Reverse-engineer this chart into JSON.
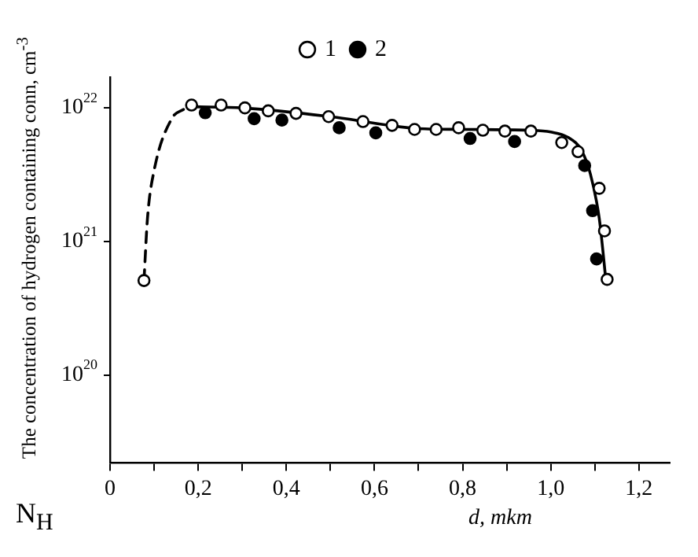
{
  "chart_data": {
    "type": "scatter",
    "ylabel": "The concentration of hydrogen containing conn, cm$^{-3}$",
    "xlabel": "d, mkm",
    "annotations": [
      "N$_{H}$"
    ],
    "xlim": [
      0,
      1.27
    ],
    "xticks": [
      0,
      {
        "value": 0.1,
        "label": null
      },
      {
        "value": 0.2,
        "label": "0,2"
      },
      {
        "value": 0.3,
        "label": null
      },
      {
        "value": 0.4,
        "label": "0,4"
      },
      {
        "value": 0.5,
        "label": null
      },
      {
        "value": 0.6,
        "label": "0,6"
      },
      {
        "value": 0.7,
        "label": null
      },
      {
        "value": 0.8,
        "label": "0,8"
      },
      {
        "value": 0.9,
        "label": null
      },
      {
        "value": 1.0,
        "label": "1,0"
      },
      {
        "value": 1.1,
        "label": null
      },
      {
        "value": 1.2,
        "label": "1,2"
      }
    ],
    "ylim": [
      2.2e+19,
      1.7e+22
    ],
    "yticks": [
      {
        "value": 1e+20,
        "label": "10$^{20}$"
      },
      {
        "value": 1e+21,
        "label": "10$^{21}$"
      },
      {
        "value": 1e+22,
        "label": "10$^{22}$"
      }
    ],
    "log": "y",
    "grid": false,
    "legend": "top",
    "series": [
      {
        "name": "1",
        "marker": "circle",
        "color": "#ffffff",
        "x": [
          0.077,
          0.185,
          0.252,
          0.306,
          0.359,
          0.422,
          0.496,
          0.574,
          0.64,
          0.691,
          0.74,
          0.791,
          0.846,
          0.896,
          0.955,
          1.025,
          1.062,
          1.11,
          1.122,
          1.128
        ],
        "values": [
          5.1e+20,
          1.05e+22,
          1.05e+22,
          1e+22,
          9.5e+21,
          9.1e+21,
          8.6e+21,
          7.9e+21,
          7.4e+21,
          6.9e+21,
          6.9e+21,
          7.1e+21,
          6.8e+21,
          6.7e+21,
          6.7e+21,
          5.5e+21,
          4.7e+21,
          2.5e+21,
          1.2e+21,
          5.2e+20
        ]
      },
      {
        "name": "2",
        "marker": "circle",
        "color": "#000000",
        "x": [
          0.216,
          0.327,
          0.39,
          0.52,
          0.603,
          0.817,
          0.918,
          1.077,
          1.095,
          1.104
        ],
        "values": [
          9.2e+21,
          8.3e+21,
          8.1e+21,
          7.1e+21,
          6.5e+21,
          5.9e+21,
          5.6e+21,
          3.7e+21,
          1.7e+21,
          7.4e+20
        ]
      },
      {
        "type": "line",
        "marker": "none",
        "line_style": "solid",
        "color": "#000000",
        "x": [
          0.185,
          0.3,
          0.5,
          0.7,
          0.8,
          0.95,
          1.0,
          1.04,
          1.07,
          1.09,
          1.11,
          1.125
        ],
        "values": [
          1.02e+22,
          1e+22,
          8.6e+21,
          7e+21,
          6.9e+21,
          6.8e+21,
          6.6e+21,
          6e+21,
          4.8e+21,
          3.2e+21,
          1.5e+21,
          5.2e+20
        ]
      },
      {
        "type": "line",
        "marker": "none",
        "line_style": "dashed",
        "color": "#000000",
        "x": [
          0.077,
          0.085,
          0.1,
          0.14,
          0.166,
          0.185
        ],
        "values": [
          5.1e+20,
          1.5e+21,
          3.4e+21,
          8.3e+21,
          9.7e+21,
          1.02e+22
        ]
      }
    ]
  }
}
